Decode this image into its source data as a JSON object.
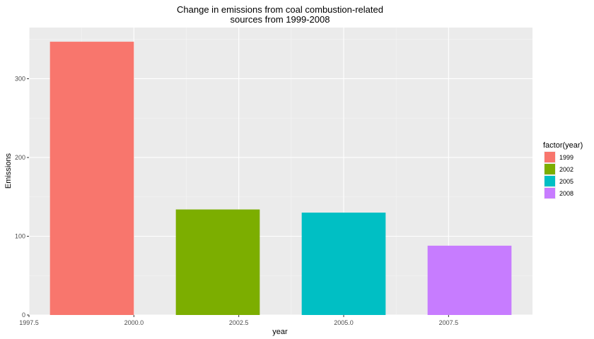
{
  "chart_data": {
    "type": "bar",
    "title_lines": [
      "Change in emissions from coal combustion-related",
      "sources from 1999-2008"
    ],
    "xlabel": "year",
    "ylabel": "Emissions",
    "x": [
      1999,
      2002,
      2005,
      2008
    ],
    "values": [
      347,
      134,
      130,
      88
    ],
    "bar_width_years": 2,
    "xlim": [
      1997.5,
      2009.5
    ],
    "ylim": [
      0,
      365
    ],
    "x_ticks": [
      {
        "value": 1997.5,
        "label": "1997.5"
      },
      {
        "value": 2000.0,
        "label": "2000.0"
      },
      {
        "value": 2002.5,
        "label": "2002.5"
      },
      {
        "value": 2005.0,
        "label": "2005.0"
      },
      {
        "value": 2007.5,
        "label": "2007.5"
      }
    ],
    "y_ticks": [
      {
        "value": 0,
        "label": "0"
      },
      {
        "value": 100,
        "label": "100"
      },
      {
        "value": 200,
        "label": "200"
      },
      {
        "value": 300,
        "label": "300"
      }
    ],
    "legend_title": "factor(year)",
    "legend_position": "right",
    "legend": [
      {
        "label": "1999",
        "color": "#F8766D"
      },
      {
        "label": "2002",
        "color": "#7CAE00"
      },
      {
        "label": "2005",
        "color": "#00BFC4"
      },
      {
        "label": "2008",
        "color": "#C77CFF"
      }
    ],
    "grid": true,
    "panel_background": "#EBEBEB"
  }
}
